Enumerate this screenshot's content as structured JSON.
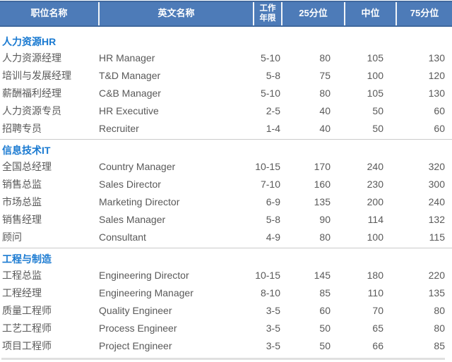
{
  "chart_data": {
    "type": "table",
    "columns": [
      "职位名称",
      "英文名称",
      "工作年限",
      "25分位",
      "中位",
      "75分位"
    ],
    "sections": [
      {
        "title": "人力资源HR",
        "rows": [
          {
            "cn": "人力资源经理",
            "en": "HR Manager",
            "years": "5-10",
            "p25": "80",
            "p50": "105",
            "p75": "130"
          },
          {
            "cn": "培训与发展经理",
            "en": "T&D Manager",
            "years": "5-8",
            "p25": "75",
            "p50": "100",
            "p75": "120"
          },
          {
            "cn": "薪酬福利经理",
            "en": "C&B Manager",
            "years": "5-10",
            "p25": "80",
            "p50": "105",
            "p75": "130"
          },
          {
            "cn": "人力资源专员",
            "en": "HR Executive",
            "years": "2-5",
            "p25": "40",
            "p50": "50",
            "p75": "60"
          },
          {
            "cn": "招聘专员",
            "en": "Recruiter",
            "years": "1-4",
            "p25": "40",
            "p50": "50",
            "p75": "60"
          }
        ]
      },
      {
        "title": "信息技术IT",
        "rows": [
          {
            "cn": "全国总经理",
            "en": "Country Manager",
            "years": "10-15",
            "p25": "170",
            "p50": "240",
            "p75": "320"
          },
          {
            "cn": "销售总监",
            "en": "Sales Director",
            "years": "7-10",
            "p25": "160",
            "p50": "230",
            "p75": "300"
          },
          {
            "cn": "市场总监",
            "en": "Marketing Director",
            "years": "6-9",
            "p25": "135",
            "p50": "200",
            "p75": "240"
          },
          {
            "cn": "销售经理",
            "en": "Sales Manager",
            "years": "5-8",
            "p25": "90",
            "p50": "114",
            "p75": "132"
          },
          {
            "cn": "顾问",
            "en": "Consultant",
            "years": "4-9",
            "p25": "80",
            "p50": "100",
            "p75": "115"
          }
        ]
      },
      {
        "title": "工程与制造",
        "rows": [
          {
            "cn": "工程总监",
            "en": "Engineering Director",
            "years": "10-15",
            "p25": "145",
            "p50": "180",
            "p75": "220"
          },
          {
            "cn": "工程经理",
            "en": "Engineering Manager",
            "years": "8-10",
            "p25": "85",
            "p50": "110",
            "p75": "135"
          },
          {
            "cn": "质量工程师",
            "en": "Quality Engineer",
            "years": "3-5",
            "p25": "60",
            "p50": "70",
            "p75": "80"
          },
          {
            "cn": "工艺工程师",
            "en": "Process Engineer",
            "years": "3-5",
            "p25": "50",
            "p50": "65",
            "p75": "80"
          },
          {
            "cn": "项目工程师",
            "en": "Project Engineer",
            "years": "3-5",
            "p25": "50",
            "p50": "66",
            "p75": "85"
          }
        ]
      }
    ],
    "colors": {
      "header_background": "#4d7bb8",
      "header_border": "#40689e",
      "header_text": "#ffffff",
      "section_title_text": "#1a7ad1",
      "body_text": "#595959",
      "section_divider": "#cbcbcb",
      "bottom_bar": "#e0e0e0"
    }
  }
}
